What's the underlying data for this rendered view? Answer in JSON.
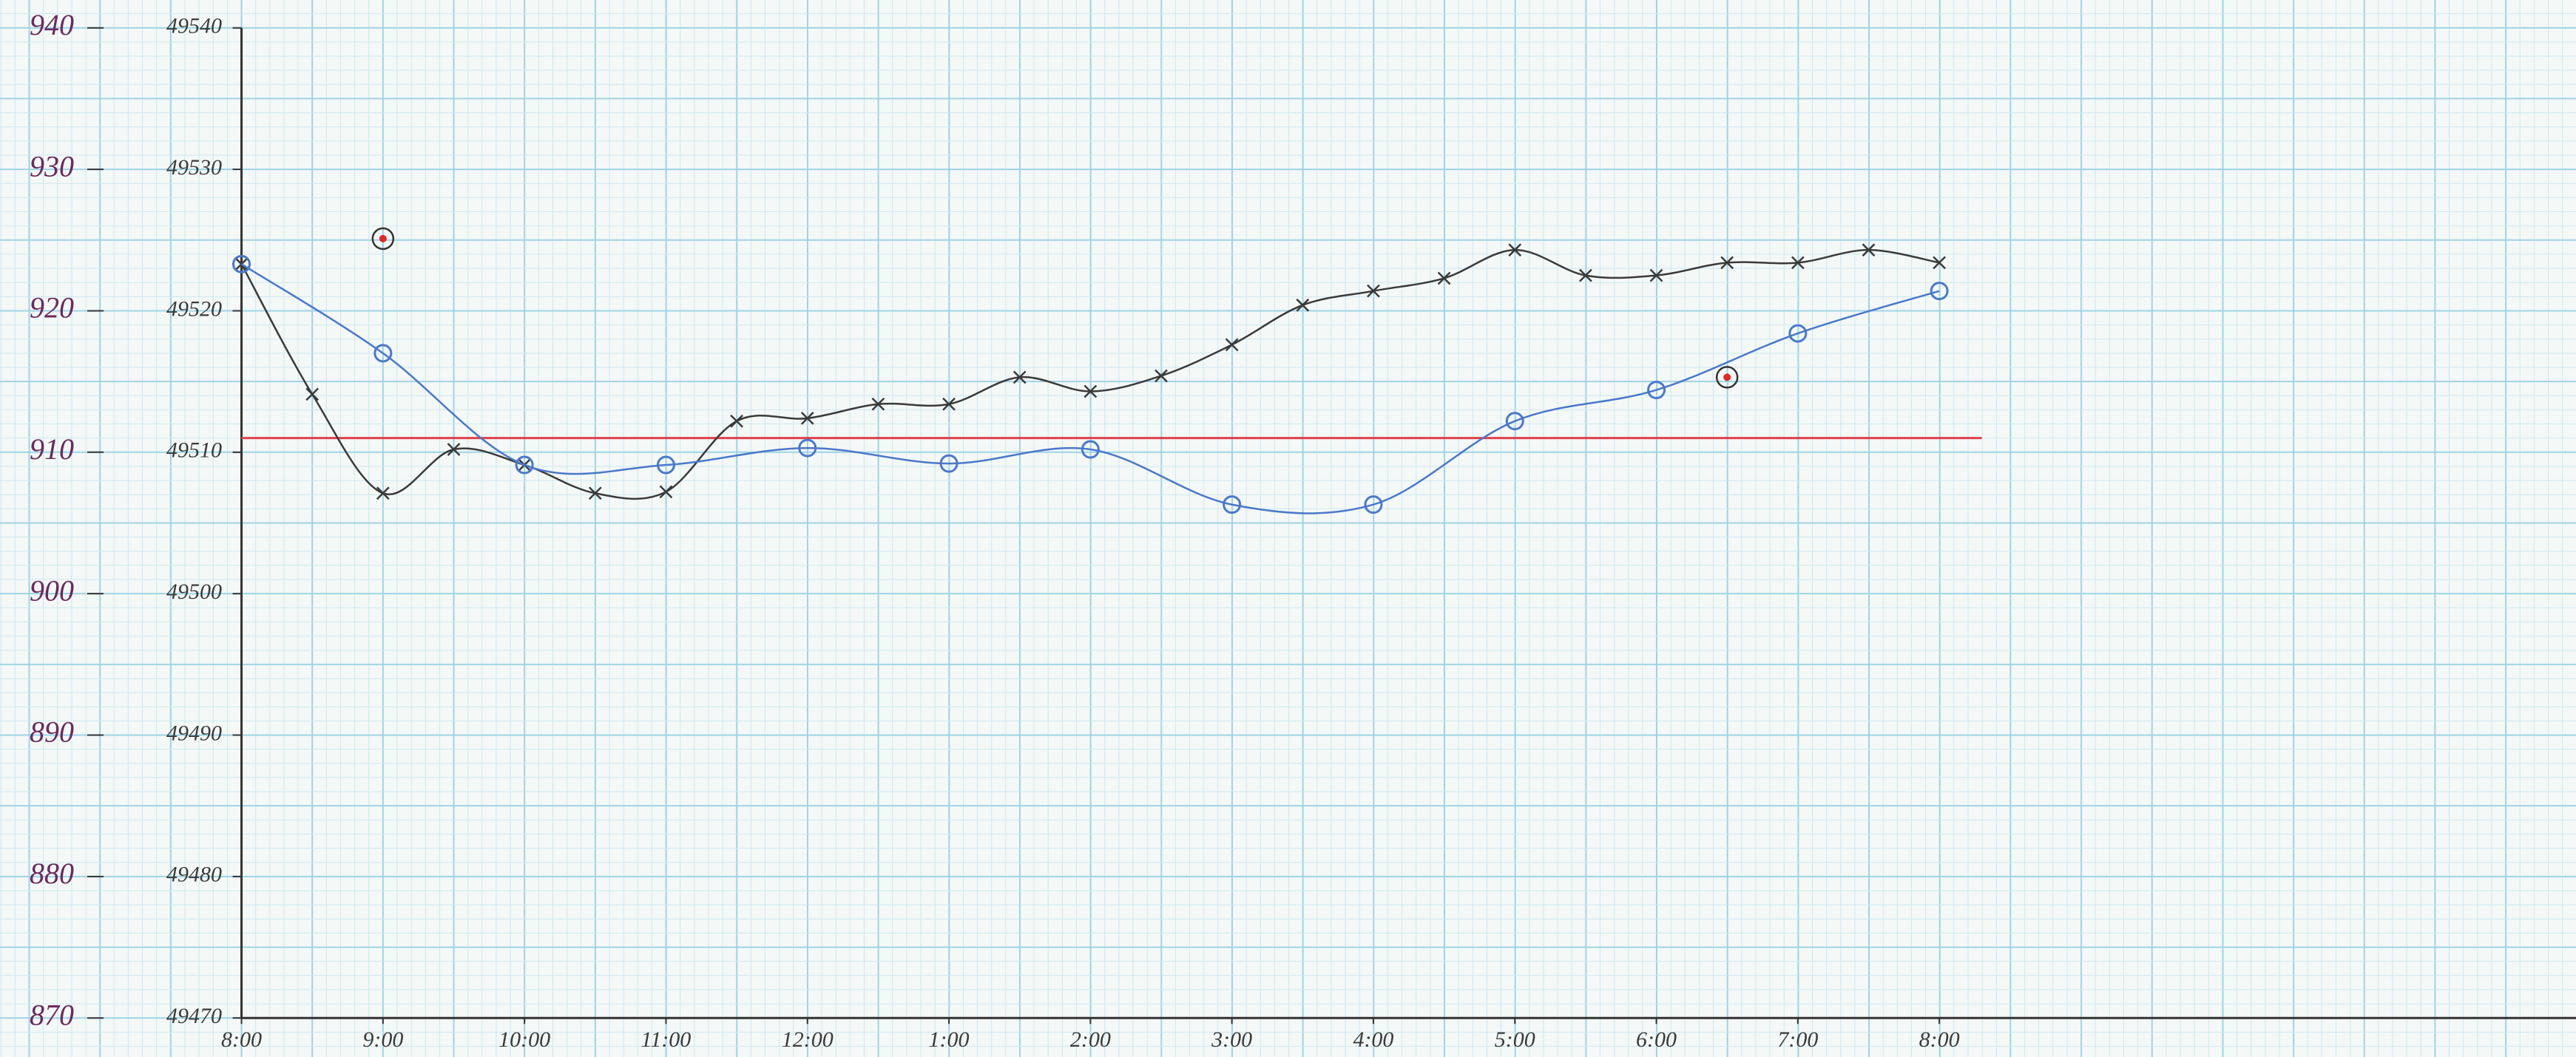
{
  "chart_data": {
    "type": "line",
    "xlim": [
      0,
      16.5
    ],
    "xticks": [
      {
        "value": 0,
        "label": "8:00"
      },
      {
        "value": 1,
        "label": "9:00"
      },
      {
        "value": 2,
        "label": "10:00"
      },
      {
        "value": 3,
        "label": "11:00"
      },
      {
        "value": 4,
        "label": "12:00"
      },
      {
        "value": 5,
        "label": "1:00"
      },
      {
        "value": 6,
        "label": "2:00"
      },
      {
        "value": 7,
        "label": "3:00"
      },
      {
        "value": 8,
        "label": "4:00"
      },
      {
        "value": 9,
        "label": "5:00"
      },
      {
        "value": 10,
        "label": "6:00"
      },
      {
        "value": 11,
        "label": "7:00"
      },
      {
        "value": 12,
        "label": "8:00"
      }
    ],
    "ylim": [
      870,
      940
    ],
    "yticks": [
      870,
      880,
      890,
      900,
      910,
      920,
      930,
      940
    ],
    "y2lim": [
      49470,
      49540
    ],
    "y2ticks": [
      49470,
      49480,
      49490,
      49500,
      49510,
      49520,
      49530,
      49540
    ],
    "grid": true,
    "reference_line": {
      "value": 911,
      "color": "#e0404a"
    },
    "series": [
      {
        "color": "#3a3a3a",
        "marker": "cross",
        "line": true,
        "x": [
          0,
          0.5,
          1,
          1.5,
          2,
          2.5,
          3,
          3.5,
          4,
          4.5,
          5,
          5.5,
          6,
          6.5,
          7,
          7.5,
          8,
          8.5,
          9,
          9.5,
          10,
          10.5,
          11,
          11.5,
          12
        ],
        "values": [
          923.3,
          914.1,
          907.1,
          910.2,
          909.1,
          907.1,
          907.2,
          912.2,
          912.4,
          913.4,
          913.4,
          915.3,
          914.3,
          915.4,
          917.6,
          920.4,
          921.4,
          922.3,
          924.3,
          922.5,
          922.5,
          923.4,
          923.4,
          924.3,
          923.4
        ]
      },
      {
        "color": "#4a78c8",
        "marker": "circle",
        "line": true,
        "x": [
          0,
          1,
          2,
          3,
          4,
          5,
          6,
          7,
          8,
          9,
          10,
          11,
          12
        ],
        "values": [
          923.3,
          917,
          909.1,
          909.1,
          910.3,
          909.2,
          910.2,
          906.3,
          906.3,
          912.2,
          914.4,
          918.4,
          921.4
        ]
      },
      {
        "color": "#e02828",
        "marker": "dot",
        "line": false,
        "x": [
          1,
          10.5
        ],
        "values": [
          925.1,
          915.3
        ]
      }
    ]
  }
}
